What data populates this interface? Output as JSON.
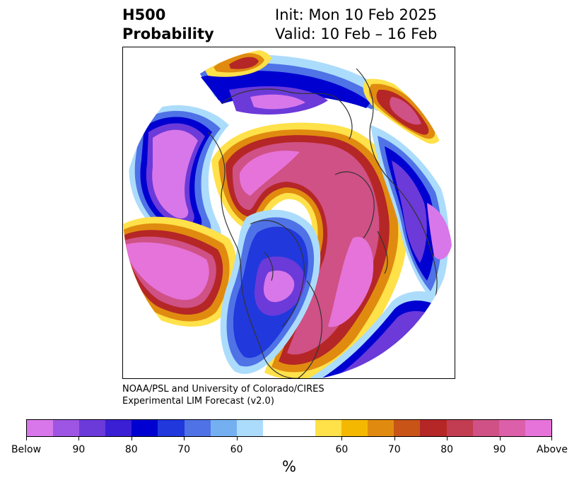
{
  "header": {
    "title_line1": "H500",
    "title_line2": "Probability",
    "init_text": "Init: Mon 10 Feb 2025",
    "valid_text": "Valid: 10 Feb – 16 Feb"
  },
  "credit": {
    "line1": "NOAA/PSL and University of Colorado/CIRES",
    "line2": "Experimental LIM Forecast (v2.0)"
  },
  "colorbar": {
    "colors": [
      "#d877ea",
      "#9e55e3",
      "#6b3ad9",
      "#3a1fd4",
      "#0000d0",
      "#2038dc",
      "#4f72e6",
      "#74b0f1",
      "#acdcfb",
      "#ffffff",
      "#ffffff",
      "#ffe14a",
      "#f5b800",
      "#e08b10",
      "#c85418",
      "#b52626",
      "#c23d52",
      "#cf5185",
      "#dc5fa9",
      "#e673d9"
    ],
    "tick_labels": [
      "Below",
      "90",
      "80",
      "70",
      "60",
      "60",
      "70",
      "80",
      "90",
      "Above"
    ],
    "unit": "%"
  },
  "map": {
    "projection": "north-polar-stereographic",
    "palette": {
      "above_high": "#e673d9",
      "above_mid": "#cf5185",
      "above_low": "#b52626",
      "above_edge": "#e08b10",
      "above_min": "#ffe14a",
      "below_high": "#d877ea",
      "below_mid": "#6b3ad9",
      "below_low": "#0000d0",
      "below_edge": "#4f72e6",
      "below_min": "#acdcfb",
      "neutral": "#ffffff",
      "coastline": "#333333"
    }
  }
}
